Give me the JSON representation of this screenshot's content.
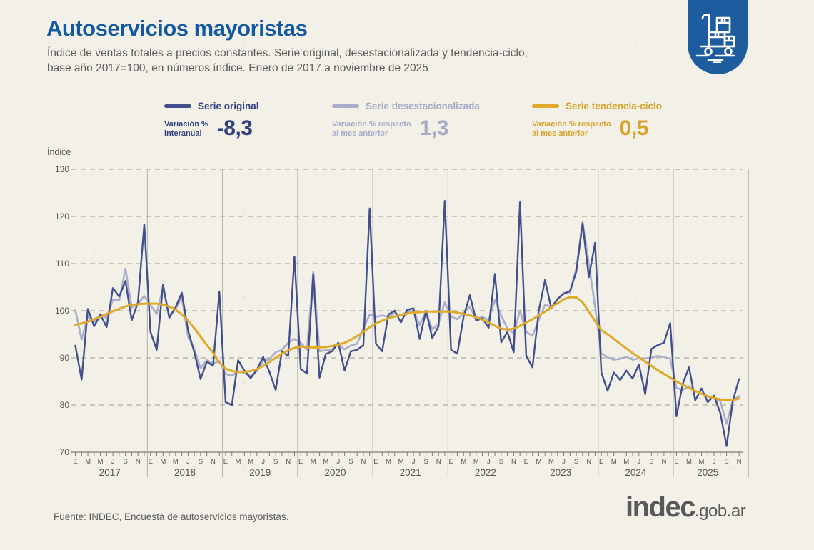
{
  "header": {
    "title": "Autoservicios mayoristas",
    "subtitle_line1": "Índice de ventas totales a precios constantes. Serie original, desestacionalizada y tendencia-ciclo,",
    "subtitle_line2": "base año 2017=100, en números índice. Enero de 2017 a noviembre de 2025"
  },
  "badge_icon": "hand-truck-with-boxes-icon",
  "brand": {
    "name": "indec",
    "domain": ".gob.ar",
    "color": "#58595b"
  },
  "footer": {
    "source": "Fuente: INDEC, Encuesta de autoservicios mayoristas."
  },
  "legend": [
    {
      "label": "Serie original",
      "note_line1": "Variación %",
      "note_line2": "interanual",
      "value": "-8,3",
      "color": "#414f8c"
    },
    {
      "label": "Serie desestacionalizada",
      "note_line1": "Variación % respecto",
      "note_line2": "al mes anterior",
      "value": "1,3",
      "color": "#a9aecb"
    },
    {
      "label": "Serie tendencia-ciclo",
      "note_line1": "Variación % respecto",
      "note_line2": "al mes anterior",
      "value": "0,5",
      "color": "#dfa92a"
    }
  ],
  "chart_data": {
    "type": "line",
    "ylabel": "Índice",
    "ylim": [
      70,
      130
    ],
    "yticks": [
      70,
      80,
      90,
      100,
      110,
      120,
      130
    ],
    "grid": "dashed-horizontal",
    "x_start": "2017-01",
    "x_end": "2025-11",
    "years": [
      "2017",
      "2018",
      "2019",
      "2020",
      "2021",
      "2022",
      "2023",
      "2024",
      "2025"
    ],
    "month_tick_labels": [
      "E",
      "M",
      "M",
      "J",
      "S",
      "N"
    ],
    "axis_color": "#7c7c74",
    "gridline_color": "#9b9b93",
    "separator_color": "#b3b0a5",
    "series": [
      {
        "name": "Serie original",
        "color": "#414f8c",
        "width": 2.4,
        "values": [
          92.6,
          85.4,
          100.4,
          96.7,
          99.2,
          96.5,
          104.8,
          103.0,
          106.3,
          98.0,
          101.8,
          118.3,
          95.5,
          91.7,
          105.5,
          98.5,
          100.7,
          103.8,
          95.8,
          91.2,
          85.5,
          89.2,
          88.3,
          104.0,
          80.6,
          80.0,
          89.5,
          87.3,
          85.7,
          87.5,
          90.2,
          87.0,
          83.2,
          91.4,
          90.4,
          111.5,
          87.6,
          86.7,
          107.8,
          85.8,
          90.8,
          91.4,
          93.2,
          87.3,
          91.4,
          91.7,
          92.7,
          121.7,
          93.0,
          91.4,
          99.2,
          100.0,
          97.5,
          100.2,
          100.5,
          94.0,
          100.0,
          94.2,
          96.7,
          123.3,
          91.7,
          90.9,
          98.7,
          103.3,
          97.9,
          98.4,
          96.4,
          107.8,
          93.3,
          95.5,
          91.2,
          123.0,
          90.4,
          88.0,
          100.0,
          106.5,
          100.5,
          102.5,
          103.6,
          104.2,
          108.3,
          118.5,
          107.1,
          114.4,
          86.9,
          83.0,
          86.9,
          85.3,
          87.3,
          85.6,
          88.6,
          82.3,
          91.9,
          92.7,
          93.2,
          97.4,
          77.6,
          84.5,
          88.0,
          81.0,
          83.5,
          80.6,
          82.0,
          78.3,
          71.3,
          80.8,
          85.5
        ]
      },
      {
        "name": "Serie desestacionalizada",
        "color": "#a9aecb",
        "width": 2.6,
        "values": [
          100.1,
          93.9,
          98.8,
          97.6,
          99.3,
          98.4,
          102.4,
          102.2,
          108.9,
          100.7,
          101.5,
          103.1,
          101.2,
          99.3,
          105.0,
          99.0,
          100.4,
          102.8,
          94.5,
          91.8,
          87.8,
          89.5,
          88.8,
          89.3,
          86.6,
          86.2,
          87.1,
          86.8,
          86.1,
          87.2,
          89.4,
          89.7,
          91.2,
          91.7,
          93.2,
          94.0,
          93.2,
          91.7,
          108.2,
          91.4,
          91.6,
          91.8,
          92.9,
          91.8,
          92.6,
          93.0,
          96.2,
          99.2,
          98.7,
          99.0,
          98.7,
          99.5,
          99.0,
          99.8,
          100.0,
          97.0,
          99.8,
          96.0,
          97.3,
          101.8,
          98.8,
          98.2,
          99.5,
          100.8,
          98.2,
          98.7,
          98.0,
          102.3,
          99.0,
          96.2,
          95.2,
          100.0,
          95.5,
          94.7,
          98.0,
          101.3,
          100.7,
          102.5,
          103.8,
          103.8,
          109.0,
          118.9,
          110.0,
          100.8,
          90.9,
          90.1,
          89.6,
          89.8,
          90.2,
          89.6,
          89.9,
          89.9,
          90.0,
          90.4,
          90.2,
          89.8,
          83.6,
          83.2,
          84.0,
          83.0,
          82.4,
          81.8,
          81.4,
          80.8,
          76.0,
          80.9,
          81.9
        ]
      },
      {
        "name": "Serie tendencia-ciclo",
        "color": "#dfa92a",
        "width": 3,
        "values": [
          97.0,
          97.3,
          97.7,
          98.2,
          98.7,
          99.3,
          99.9,
          100.4,
          100.9,
          101.2,
          101.4,
          101.5,
          101.5,
          101.5,
          101.3,
          100.9,
          100.2,
          99.2,
          97.9,
          96.3,
          94.5,
          92.7,
          91.1,
          89.0,
          87.7,
          87.2,
          87.0,
          87.0,
          87.2,
          87.6,
          88.3,
          89.1,
          90.0,
          90.9,
          91.6,
          92.1,
          92.4,
          92.3,
          92.2,
          92.2,
          92.3,
          92.5,
          92.8,
          93.2,
          93.8,
          94.6,
          95.5,
          96.5,
          97.3,
          97.9,
          98.4,
          98.8,
          99.1,
          99.4,
          99.6,
          99.7,
          99.8,
          99.8,
          99.8,
          99.8,
          99.8,
          99.6,
          99.3,
          99.0,
          98.6,
          98.1,
          97.5,
          96.8,
          96.2,
          96.0,
          96.2,
          96.8,
          97.5,
          98.2,
          99.0,
          99.8,
          100.7,
          101.6,
          102.4,
          102.9,
          102.8,
          101.8,
          99.8,
          97.8,
          95.9,
          95.0,
          94.0,
          93.0,
          92.0,
          91.0,
          90.1,
          89.2,
          88.3,
          87.4,
          86.6,
          85.8,
          85.0,
          84.3,
          83.6,
          83.0,
          82.4,
          81.9,
          81.5,
          81.2,
          81.0,
          81.0,
          81.4
        ]
      }
    ]
  }
}
